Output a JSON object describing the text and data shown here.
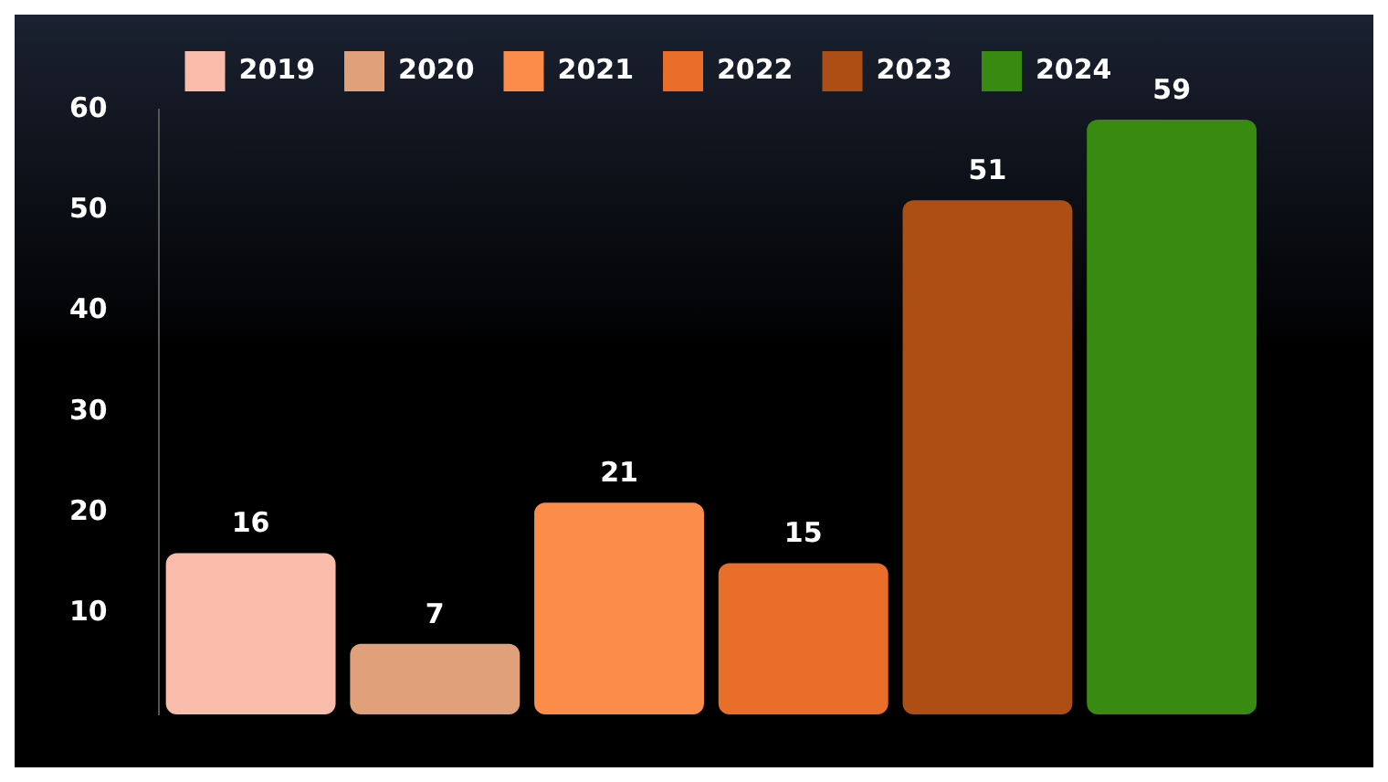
{
  "chart_data": {
    "type": "bar",
    "categories": [
      null,
      null,
      null,
      null,
      null,
      null
    ],
    "stacked": true,
    "grid": false,
    "legend": "top",
    "data_labels": true,
    "ylim": [
      0,
      60
    ],
    "yticks": [
      10,
      20,
      30,
      40,
      50,
      60
    ],
    "series": [
      {
        "name": "2019",
        "color": "#f9bcaa",
        "values": [
          16,
          null,
          null,
          null,
          null,
          null
        ]
      },
      {
        "name": "2020",
        "color": "#e0a07a",
        "values": [
          null,
          7,
          null,
          null,
          null,
          null
        ]
      },
      {
        "name": "2021",
        "color": "#fb8c4a",
        "values": [
          null,
          null,
          21,
          null,
          null,
          null
        ]
      },
      {
        "name": "2022",
        "color": "#e86e2a",
        "values": [
          null,
          null,
          null,
          15,
          null,
          null
        ]
      },
      {
        "name": "2023",
        "color": "#ad4e14",
        "values": [
          null,
          null,
          null,
          null,
          51,
          null
        ]
      },
      {
        "name": "2024",
        "color": "#388b10",
        "values": [
          null,
          null,
          null,
          null,
          null,
          59
        ]
      }
    ]
  }
}
